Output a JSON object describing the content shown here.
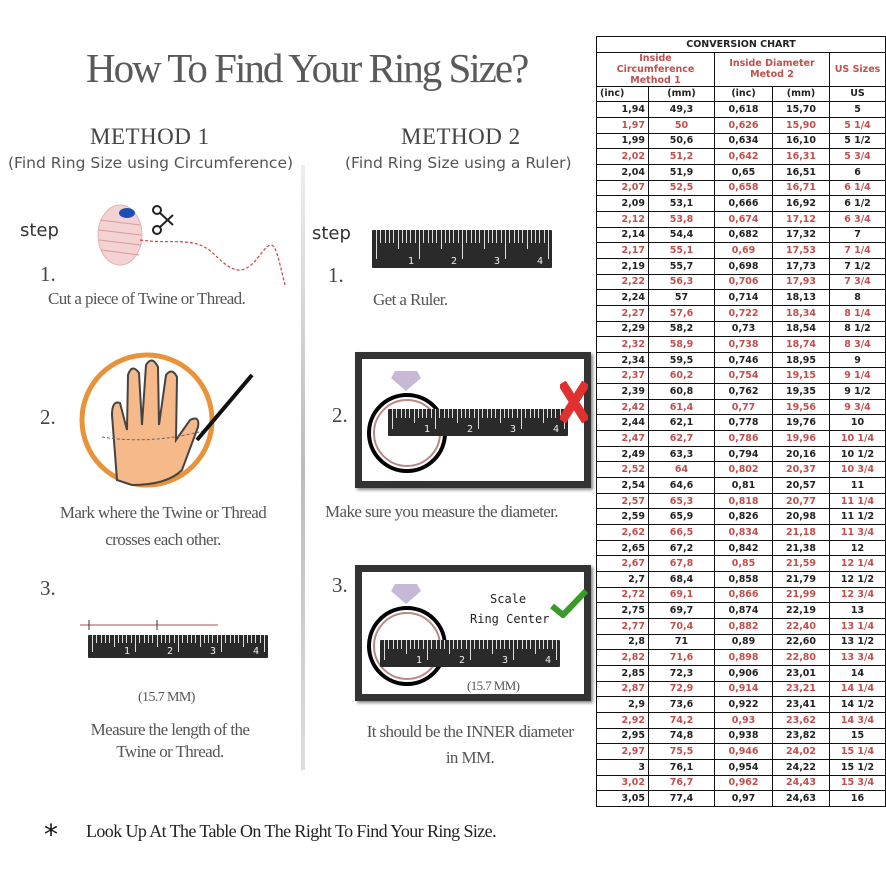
{
  "title": "How To Find Your Ring Size?",
  "method1": {
    "heading": "METHOD 1",
    "subtitle": "(Find Ring Size using Circumference)",
    "step_label": "step",
    "steps": [
      {
        "num": "1.",
        "text": "Cut a piece of  Twine or Thread."
      },
      {
        "num": "2.",
        "text_line1": "Mark where the Twine or Thread",
        "text_line2": "crosses each other."
      },
      {
        "num": "3.",
        "measure": "(15.7 MM)",
        "text_line1": "Measure the length of the",
        "text_line2": "Twine or Thread."
      }
    ]
  },
  "method2": {
    "heading": "METHOD 2",
    "subtitle": "(Find Ring Size using a Ruler)",
    "step_label": "step",
    "steps": [
      {
        "num": "1.",
        "text": "Get a Ruler."
      },
      {
        "num": "2.",
        "text": "Make sure you measure the diameter.",
        "indicator": "x-mark-icon"
      },
      {
        "num": "3.",
        "scale_label": "Scale",
        "center_label": "Ring Center",
        "measure": "(15.7 MM)",
        "indicator": "checkmark-icon",
        "text_line1": "It should be the INNER diameter",
        "text_line2": "in MM."
      }
    ]
  },
  "ruler_labels": [
    "1",
    "2",
    "3",
    "4"
  ],
  "footnote": {
    "marker": "*",
    "text": "Look Up At The Table On The Right To Find Your Ring Size."
  },
  "colors": {
    "accent_red": "#c0504d",
    "ring_orange": "#e8923a",
    "check_green": "#3a9a2a"
  },
  "table": {
    "title": "CONVERSION CHART",
    "group1": {
      "line1": "Inside Circumference",
      "line2": "Method 1"
    },
    "group2": {
      "line1": "Inside Diameter",
      "line2": "Metod 2"
    },
    "group3": "US Sizes",
    "units": [
      "(inc)",
      "(mm)",
      "(inc)",
      "(mm)",
      "US"
    ],
    "rows": [
      [
        "1,94",
        "49,3",
        "0,618",
        "15,70",
        "5"
      ],
      [
        "1,97",
        "50",
        "0,626",
        "15,90",
        "5 1/4"
      ],
      [
        "1,99",
        "50,6",
        "0,634",
        "16,10",
        "5 1/2"
      ],
      [
        "2,02",
        "51,2",
        "0,642",
        "16,31",
        "5 3/4"
      ],
      [
        "2,04",
        "51,9",
        "0,65",
        "16,51",
        "6"
      ],
      [
        "2,07",
        "52,5",
        "0,658",
        "16,71",
        "6 1/4"
      ],
      [
        "2,09",
        "53,1",
        "0,666",
        "16,92",
        "6 1/2"
      ],
      [
        "2,12",
        "53,8",
        "0,674",
        "17,12",
        "6 3/4"
      ],
      [
        "2,14",
        "54,4",
        "0,682",
        "17,32",
        "7"
      ],
      [
        "2,17",
        "55,1",
        "0,69",
        "17,53",
        "7 1/4"
      ],
      [
        "2,19",
        "55,7",
        "0,698",
        "17,73",
        "7 1/2"
      ],
      [
        "2,22",
        "56,3",
        "0,706",
        "17,93",
        "7 3/4"
      ],
      [
        "2,24",
        "57",
        "0,714",
        "18,13",
        "8"
      ],
      [
        "2,27",
        "57,6",
        "0,722",
        "18,34",
        "8 1/4"
      ],
      [
        "2,29",
        "58,2",
        "0,73",
        "18,54",
        "8 1/2"
      ],
      [
        "2,32",
        "58,9",
        "0,738",
        "18,74",
        "8 3/4"
      ],
      [
        "2,34",
        "59,5",
        "0,746",
        "18,95",
        "9"
      ],
      [
        "2,37",
        "60,2",
        "0,754",
        "19,15",
        "9 1/4"
      ],
      [
        "2,39",
        "60,8",
        "0,762",
        "19,35",
        "9 1/2"
      ],
      [
        "2,42",
        "61,4",
        "0,77",
        "19,56",
        "9 3/4"
      ],
      [
        "2,44",
        "62,1",
        "0,778",
        "19,76",
        "10"
      ],
      [
        "2,47",
        "62,7",
        "0,786",
        "19,96",
        "10 1/4"
      ],
      [
        "2,49",
        "63,3",
        "0,794",
        "20,16",
        "10 1/2"
      ],
      [
        "2,52",
        "64",
        "0,802",
        "20,37",
        "10 3/4"
      ],
      [
        "2,54",
        "64,6",
        "0,81",
        "20,57",
        "11"
      ],
      [
        "2,57",
        "65,3",
        "0,818",
        "20,77",
        "11 1/4"
      ],
      [
        "2,59",
        "65,9",
        "0,826",
        "20,98",
        "11 1/2"
      ],
      [
        "2,62",
        "66,5",
        "0,834",
        "21,18",
        "11 3/4"
      ],
      [
        "2,65",
        "67,2",
        "0,842",
        "21,38",
        "12"
      ],
      [
        "2,67",
        "67,8",
        "0,85",
        "21,59",
        "12 1/4"
      ],
      [
        "2,7",
        "68,4",
        "0,858",
        "21,79",
        "12 1/2"
      ],
      [
        "2,72",
        "69,1",
        "0,866",
        "21,99",
        "12 3/4"
      ],
      [
        "2,75",
        "69,7",
        "0,874",
        "22,19",
        "13"
      ],
      [
        "2,77",
        "70,4",
        "0,882",
        "22,40",
        "13 1/4"
      ],
      [
        "2,8",
        "71",
        "0,89",
        "22,60",
        "13 1/2"
      ],
      [
        "2,82",
        "71,6",
        "0,898",
        "22,80",
        "13 3/4"
      ],
      [
        "2,85",
        "72,3",
        "0,906",
        "23,01",
        "14"
      ],
      [
        "2,87",
        "72,9",
        "0,914",
        "23,21",
        "14 1/4"
      ],
      [
        "2,9",
        "73,6",
        "0,922",
        "23,41",
        "14 1/2"
      ],
      [
        "2,92",
        "74,2",
        "0,93",
        "23,62",
        "14 3/4"
      ],
      [
        "2,95",
        "74,8",
        "0,938",
        "23,82",
        "15"
      ],
      [
        "2,97",
        "75,5",
        "0,946",
        "24,02",
        "15 1/4"
      ],
      [
        "3",
        "76,1",
        "0,954",
        "24,22",
        "15 1/2"
      ],
      [
        "3,02",
        "76,7",
        "0,962",
        "24,43",
        "15 3/4"
      ],
      [
        "3,05",
        "77,4",
        "0,97",
        "24,63",
        "16"
      ]
    ]
  }
}
